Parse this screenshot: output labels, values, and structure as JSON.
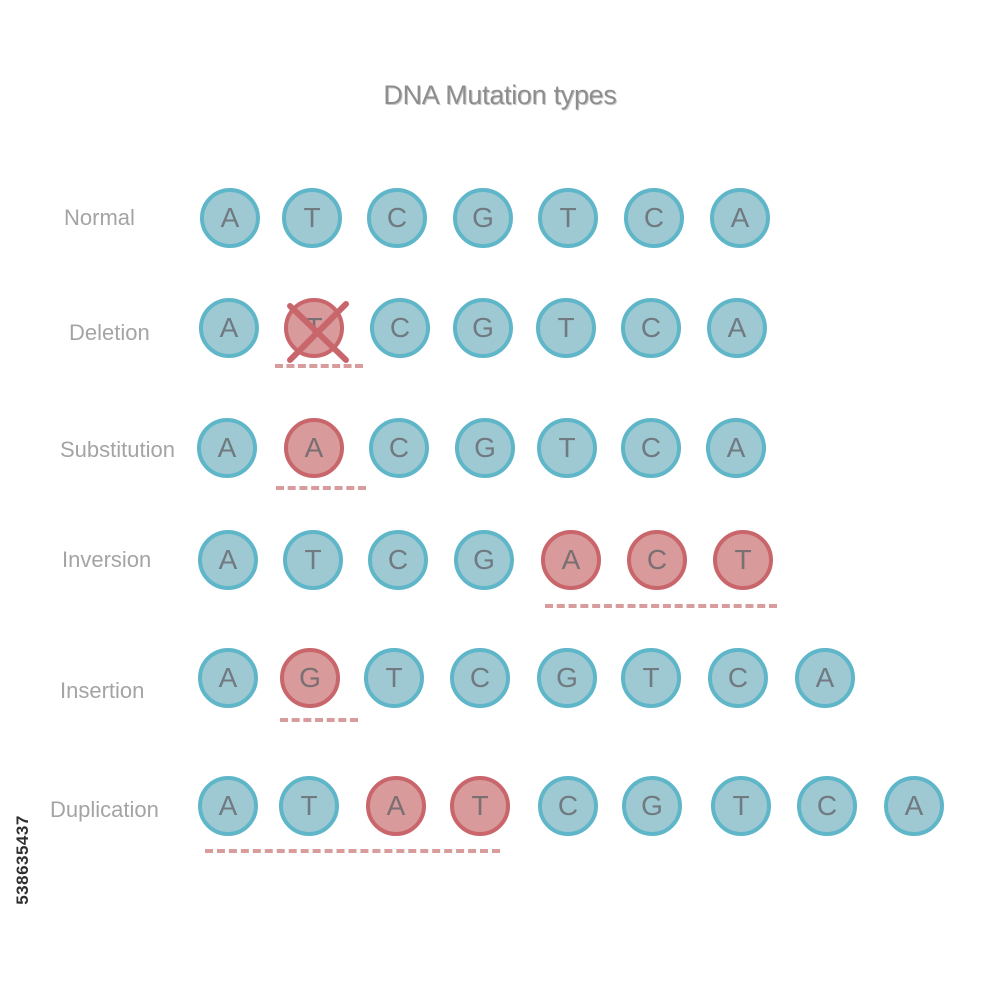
{
  "title": "DNA Mutation types",
  "colors": {
    "normal_fill": "#9ec9d2",
    "normal_border": "#5eb6c8",
    "mutated_fill": "#d89a9a",
    "mutated_border": "#c9666b",
    "underline": "#d79c9b"
  },
  "rows": [
    {
      "label": "Normal",
      "bases": [
        {
          "letter": "A",
          "state": "normal"
        },
        {
          "letter": "T",
          "state": "normal"
        },
        {
          "letter": "C",
          "state": "normal"
        },
        {
          "letter": "G",
          "state": "normal"
        },
        {
          "letter": "T",
          "state": "normal"
        },
        {
          "letter": "C",
          "state": "normal"
        },
        {
          "letter": "A",
          "state": "normal"
        }
      ]
    },
    {
      "label": "Deletion",
      "bases": [
        {
          "letter": "A",
          "state": "normal"
        },
        {
          "letter": "T",
          "state": "deleted"
        },
        {
          "letter": "C",
          "state": "normal"
        },
        {
          "letter": "G",
          "state": "normal"
        },
        {
          "letter": "T",
          "state": "normal"
        },
        {
          "letter": "C",
          "state": "normal"
        },
        {
          "letter": "A",
          "state": "normal"
        }
      ]
    },
    {
      "label": "Substitution",
      "bases": [
        {
          "letter": "A",
          "state": "normal"
        },
        {
          "letter": "A",
          "state": "mutated"
        },
        {
          "letter": "C",
          "state": "normal"
        },
        {
          "letter": "G",
          "state": "normal"
        },
        {
          "letter": "T",
          "state": "normal"
        },
        {
          "letter": "C",
          "state": "normal"
        },
        {
          "letter": "A",
          "state": "normal"
        }
      ]
    },
    {
      "label": "Inversion",
      "bases": [
        {
          "letter": "A",
          "state": "normal"
        },
        {
          "letter": "T",
          "state": "normal"
        },
        {
          "letter": "C",
          "state": "normal"
        },
        {
          "letter": "G",
          "state": "normal"
        },
        {
          "letter": "A",
          "state": "mutated"
        },
        {
          "letter": "C",
          "state": "mutated"
        },
        {
          "letter": "T",
          "state": "mutated"
        }
      ]
    },
    {
      "label": "Insertion",
      "bases": [
        {
          "letter": "A",
          "state": "normal"
        },
        {
          "letter": "G",
          "state": "mutated"
        },
        {
          "letter": "T",
          "state": "normal"
        },
        {
          "letter": "C",
          "state": "normal"
        },
        {
          "letter": "G",
          "state": "normal"
        },
        {
          "letter": "T",
          "state": "normal"
        },
        {
          "letter": "C",
          "state": "normal"
        },
        {
          "letter": "A",
          "state": "normal"
        }
      ]
    },
    {
      "label": "Duplication",
      "bases": [
        {
          "letter": "A",
          "state": "normal"
        },
        {
          "letter": "T",
          "state": "normal"
        },
        {
          "letter": "A",
          "state": "mutated"
        },
        {
          "letter": "T",
          "state": "mutated"
        },
        {
          "letter": "C",
          "state": "normal"
        },
        {
          "letter": "G",
          "state": "normal"
        },
        {
          "letter": "T",
          "state": "normal"
        },
        {
          "letter": "C",
          "state": "normal"
        },
        {
          "letter": "A",
          "state": "normal"
        }
      ]
    }
  ],
  "stock_id": "538635437"
}
